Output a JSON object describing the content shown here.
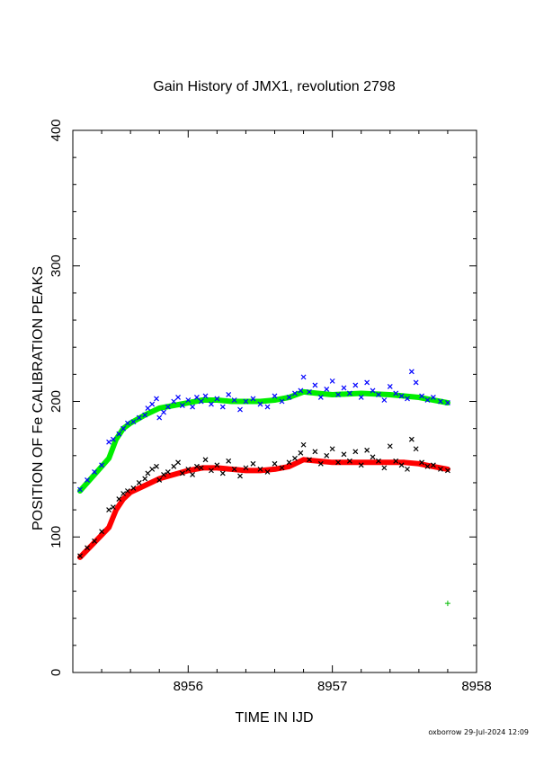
{
  "chart_data": {
    "type": "scatter",
    "title": "Gain History of JMX1, revolution 2798",
    "xlabel": "TIME IN IJD",
    "ylabel": "POSITION OF Fe CALIBRATION PEAKS",
    "xlim": [
      8955.2,
      8958
    ],
    "ylim": [
      0,
      400
    ],
    "x_ticks": [
      "8956",
      "8957",
      "8958"
    ],
    "y_ticks": [
      "0",
      "100",
      "200",
      "300",
      "400"
    ],
    "grid": false,
    "series": [
      {
        "marker": "x",
        "color": "#0000ff",
        "x": [
          8955.25,
          8955.3,
          8955.35,
          8955.4,
          8955.45,
          8955.48,
          8955.52,
          8955.55,
          8955.58,
          8955.62,
          8955.66,
          8955.7,
          8955.72,
          8955.75,
          8955.78,
          8955.8,
          8955.83,
          8955.86,
          8955.9,
          8955.93,
          8955.96,
          8956.0,
          8956.03,
          8956.06,
          8956.09,
          8956.12,
          8956.16,
          8956.2,
          8956.24,
          8956.28,
          8956.32,
          8956.36,
          8956.4,
          8956.45,
          8956.5,
          8956.55,
          8956.6,
          8956.65,
          8956.7,
          8956.74,
          8956.78,
          8956.8,
          8956.84,
          8956.88,
          8956.92,
          8956.96,
          8957.0,
          8957.04,
          8957.08,
          8957.12,
          8957.16,
          8957.2,
          8957.24,
          8957.28,
          8957.32,
          8957.36,
          8957.4,
          8957.44,
          8957.48,
          8957.52,
          8957.55,
          8957.58,
          8957.62,
          8957.66,
          8957.7,
          8957.75,
          8957.8
        ],
        "y": [
          135,
          142,
          148,
          153,
          170,
          172,
          176,
          180,
          184,
          185,
          188,
          190,
          195,
          198,
          202,
          188,
          192,
          196,
          200,
          203,
          197,
          201,
          196,
          203,
          200,
          204,
          198,
          202,
          196,
          205,
          201,
          194,
          200,
          202,
          198,
          196,
          204,
          200,
          203,
          206,
          208,
          218,
          207,
          212,
          203,
          209,
          215,
          205,
          210,
          206,
          212,
          203,
          214,
          208,
          205,
          201,
          211,
          206,
          204,
          202,
          222,
          214,
          204,
          201,
          203,
          200,
          199
        ]
      },
      {
        "marker": "x",
        "color": "#000000",
        "x": [
          8955.25,
          8955.3,
          8955.35,
          8955.4,
          8955.45,
          8955.48,
          8955.52,
          8955.55,
          8955.58,
          8955.62,
          8955.66,
          8955.7,
          8955.72,
          8955.75,
          8955.78,
          8955.8,
          8955.83,
          8955.86,
          8955.9,
          8955.93,
          8955.96,
          8956.0,
          8956.03,
          8956.06,
          8956.09,
          8956.12,
          8956.16,
          8956.2,
          8956.24,
          8956.28,
          8956.32,
          8956.36,
          8956.4,
          8956.45,
          8956.5,
          8956.55,
          8956.6,
          8956.65,
          8956.7,
          8956.74,
          8956.78,
          8956.8,
          8956.84,
          8956.88,
          8956.92,
          8956.96,
          8957.0,
          8957.04,
          8957.08,
          8957.12,
          8957.16,
          8957.2,
          8957.24,
          8957.28,
          8957.32,
          8957.36,
          8957.4,
          8957.44,
          8957.48,
          8957.52,
          8957.55,
          8957.58,
          8957.62,
          8957.66,
          8957.7,
          8957.75,
          8957.8
        ],
        "y": [
          86,
          92,
          97,
          104,
          120,
          122,
          128,
          132,
          134,
          136,
          140,
          143,
          147,
          150,
          152,
          142,
          146,
          148,
          152,
          155,
          147,
          150,
          146,
          152,
          151,
          157,
          149,
          153,
          147,
          156,
          150,
          145,
          151,
          154,
          150,
          148,
          154,
          151,
          155,
          158,
          162,
          168,
          157,
          163,
          154,
          160,
          165,
          155,
          161,
          156,
          163,
          153,
          164,
          159,
          156,
          151,
          167,
          156,
          153,
          150,
          172,
          165,
          155,
          152,
          153,
          150,
          149
        ]
      },
      {
        "line": true,
        "color": "#00ee00",
        "x": [
          8955.25,
          8955.35,
          8955.45,
          8955.5,
          8955.55,
          8955.6,
          8955.7,
          8955.8,
          8955.9,
          8956.0,
          8956.1,
          8956.2,
          8956.3,
          8956.4,
          8956.5,
          8956.6,
          8956.7,
          8956.8,
          8956.9,
          8957.0,
          8957.2,
          8957.4,
          8957.5,
          8957.6,
          8957.7,
          8957.8
        ],
        "y": [
          134,
          146,
          158,
          172,
          180,
          184,
          190,
          195,
          197,
          199,
          201,
          201,
          200,
          200,
          200,
          201,
          203,
          207,
          206,
          205,
          206,
          205,
          204,
          203,
          201,
          199
        ]
      },
      {
        "line": true,
        "color": "#ff0000",
        "x": [
          8955.25,
          8955.35,
          8955.45,
          8955.5,
          8955.55,
          8955.6,
          8955.7,
          8955.8,
          8955.9,
          8956.0,
          8956.1,
          8956.2,
          8956.3,
          8956.4,
          8956.5,
          8956.6,
          8956.7,
          8956.8,
          8956.9,
          8957.0,
          8957.2,
          8957.4,
          8957.5,
          8957.6,
          8957.7,
          8957.8
        ],
        "y": [
          85,
          96,
          107,
          120,
          128,
          133,
          138,
          143,
          146,
          149,
          151,
          151,
          150,
          149,
          149,
          150,
          152,
          157,
          156,
          155,
          155,
          155,
          155,
          154,
          152,
          150
        ]
      },
      {
        "marker": "+",
        "color": "#00bb00",
        "x": [
          8957.8
        ],
        "y": [
          51
        ]
      }
    ]
  },
  "footer": "oxborrow 29-Jul-2024 12:09"
}
